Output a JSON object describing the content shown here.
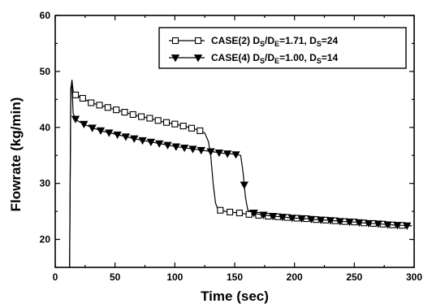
{
  "chart_data": {
    "type": "line",
    "xlabel": "Time (sec)",
    "ylabel": "Flowrate (kg/min)",
    "xlim": [
      0,
      300
    ],
    "ylim": [
      15,
      60
    ],
    "xticks": [
      0,
      50,
      100,
      150,
      200,
      250,
      300
    ],
    "yticks": [
      20,
      30,
      40,
      50,
      60
    ],
    "grid": false,
    "legend_position": "top-right",
    "series": [
      {
        "name": "CASE(2)",
        "marker": "open-square",
        "legend": {
          "case": "CASE(2)",
          "d1": "D",
          "s1": "S",
          "mid": "/D",
          "s2": "E",
          "val1": "=1.71, D",
          "s3": "S",
          "val2": "=24"
        },
        "x": [
          12,
          13,
          14,
          15,
          17,
          20,
          25,
          30,
          40,
          50,
          60,
          70,
          80,
          90,
          100,
          110,
          120,
          125,
          128,
          130,
          132,
          134,
          136,
          140,
          145,
          150,
          155,
          160,
          170,
          180,
          190,
          200,
          210,
          220,
          230,
          240,
          250,
          260,
          270,
          280,
          290,
          298
        ],
        "y": [
          15,
          47,
          48.5,
          46.5,
          45.8,
          45.5,
          45.0,
          44.4,
          43.8,
          43.2,
          42.6,
          42.0,
          41.6,
          41.0,
          40.6,
          40.1,
          39.5,
          39.0,
          37.5,
          35.0,
          30.0,
          26.5,
          25.3,
          25.1,
          24.9,
          24.8,
          24.7,
          24.5,
          24.3,
          24.1,
          24.0,
          23.8,
          23.7,
          23.5,
          23.4,
          23.2,
          23.1,
          22.9,
          22.8,
          22.6,
          22.5,
          22.4
        ],
        "marker_x": [
          17,
          23,
          30,
          37,
          44,
          51,
          58,
          65,
          72,
          79,
          86,
          93,
          100,
          107,
          114,
          121,
          138,
          146,
          154,
          162,
          170,
          178,
          186,
          194,
          202,
          210,
          218,
          226,
          234,
          242,
          250,
          258,
          266,
          274,
          282,
          290
        ]
      },
      {
        "name": "CASE(4)",
        "marker": "filled-triangle-down",
        "legend": {
          "case": "CASE(4)",
          "d1": "D",
          "s1": "S",
          "mid": "/D",
          "s2": "E",
          "val1": "=1.00, D",
          "s3": "S",
          "val2": "=14"
        },
        "x": [
          12,
          13,
          14,
          15,
          17,
          20,
          30,
          40,
          50,
          60,
          70,
          80,
          90,
          100,
          110,
          120,
          130,
          140,
          150,
          155,
          157,
          159,
          161,
          165,
          170,
          180,
          190,
          200,
          210,
          220,
          230,
          240,
          250,
          260,
          270,
          280,
          290,
          298
        ],
        "y": [
          15,
          47,
          47.5,
          42.5,
          41.5,
          41.0,
          40.0,
          39.3,
          38.8,
          38.3,
          37.8,
          37.4,
          37.0,
          36.6,
          36.3,
          36.0,
          35.7,
          35.4,
          35.2,
          35.0,
          32.0,
          27.5,
          25.2,
          24.8,
          24.5,
          24.2,
          24.0,
          23.8,
          23.7,
          23.5,
          23.4,
          23.2,
          23.1,
          22.9,
          22.8,
          22.6,
          22.5,
          22.4
        ],
        "marker_x": [
          17,
          24,
          31,
          38,
          45,
          52,
          59,
          66,
          73,
          80,
          87,
          94,
          101,
          108,
          115,
          122,
          130,
          137,
          144,
          151,
          158,
          166,
          174,
          182,
          190,
          198,
          206,
          214,
          222,
          230,
          238,
          246,
          254,
          262,
          270,
          278,
          286,
          294
        ]
      }
    ]
  }
}
